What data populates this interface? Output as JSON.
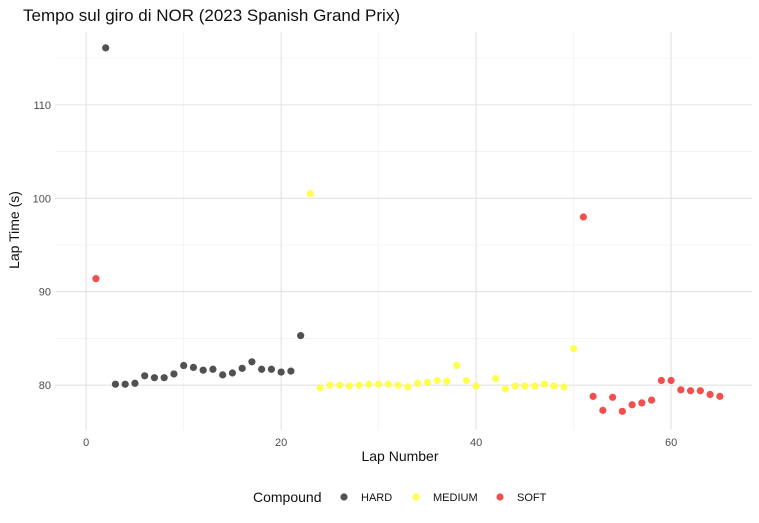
{
  "chart_data": {
    "type": "scatter",
    "title": "Tempo sul giro di NOR (2023 Spanish Grand Prix)",
    "xlabel": "Lap Number",
    "ylabel": "Lap Time (s)",
    "xlim": [
      -3.2,
      68.3
    ],
    "ylim": [
      75.2,
      117.8
    ],
    "x_ticks": [
      0,
      20,
      40,
      60
    ],
    "x_tick_labels": [
      "0",
      "20",
      "40",
      "60"
    ],
    "y_ticks": [
      80,
      90,
      100,
      110
    ],
    "y_tick_labels": [
      "80",
      "90",
      "100",
      "110"
    ],
    "grid": true,
    "legend": {
      "title": "Compound",
      "position": "bottom"
    },
    "series": [
      {
        "name": "HARD",
        "color": "#333333",
        "points": [
          [
            2,
            116.1
          ],
          [
            3,
            80.1
          ],
          [
            4,
            80.1
          ],
          [
            5,
            80.2
          ],
          [
            6,
            81.0
          ],
          [
            7,
            80.8
          ],
          [
            8,
            80.8
          ],
          [
            9,
            81.2
          ],
          [
            10,
            82.1
          ],
          [
            11,
            81.9
          ],
          [
            12,
            81.6
          ],
          [
            13,
            81.7
          ],
          [
            14,
            81.1
          ],
          [
            15,
            81.3
          ],
          [
            16,
            81.8
          ],
          [
            17,
            82.5
          ],
          [
            18,
            81.7
          ],
          [
            19,
            81.7
          ],
          [
            20,
            81.4
          ],
          [
            21,
            81.5
          ],
          [
            22,
            85.3
          ]
        ]
      },
      {
        "name": "MEDIUM",
        "color": "#ffff33",
        "points": [
          [
            23,
            100.5
          ],
          [
            24,
            79.7
          ],
          [
            25,
            80.0
          ],
          [
            26,
            80.0
          ],
          [
            27,
            79.9
          ],
          [
            28,
            80.0
          ],
          [
            29,
            80.1
          ],
          [
            30,
            80.1
          ],
          [
            31,
            80.1
          ],
          [
            32,
            80.0
          ],
          [
            33,
            79.8
          ],
          [
            34,
            80.2
          ],
          [
            35,
            80.3
          ],
          [
            36,
            80.5
          ],
          [
            37,
            80.4
          ],
          [
            38,
            82.1
          ],
          [
            39,
            80.5
          ],
          [
            40,
            79.9
          ],
          [
            42,
            80.7
          ],
          [
            43,
            79.6
          ],
          [
            44,
            79.9
          ],
          [
            45,
            79.9
          ],
          [
            46,
            79.9
          ],
          [
            47,
            80.1
          ],
          [
            48,
            79.9
          ],
          [
            49,
            79.8
          ],
          [
            50,
            83.9
          ]
        ]
      },
      {
        "name": "SOFT",
        "color": "#f03030",
        "points": [
          [
            1,
            91.4
          ],
          [
            51,
            98.0
          ],
          [
            52,
            78.8
          ],
          [
            53,
            77.3
          ],
          [
            54,
            78.7
          ],
          [
            55,
            77.2
          ],
          [
            56,
            77.9
          ],
          [
            57,
            78.1
          ],
          [
            58,
            78.4
          ],
          [
            59,
            80.5
          ],
          [
            60,
            80.5
          ],
          [
            61,
            79.5
          ],
          [
            62,
            79.4
          ],
          [
            63,
            79.4
          ],
          [
            64,
            79.0
          ],
          [
            65,
            78.8
          ]
        ]
      }
    ]
  }
}
